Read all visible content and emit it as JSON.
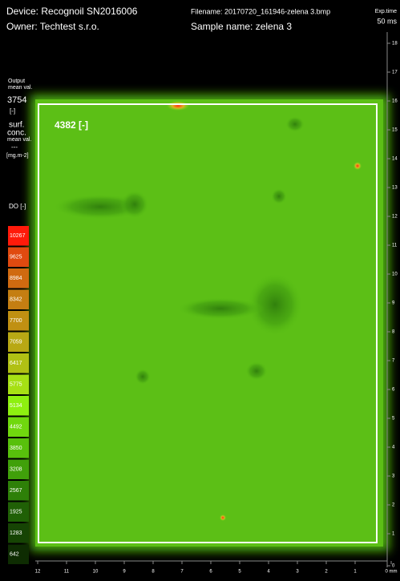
{
  "header": {
    "device": "Device: Recognoil SN2016006",
    "owner": "Owner: Techtest s.r.o.",
    "filename": "Filename: 20170720_161946-zelena 3.bmp",
    "sample_name": "Sample name: zelena 3",
    "exp_time_label": "Exp.time",
    "exp_time": "50 ms"
  },
  "left_panel": {
    "output_label": "Output",
    "output_sub": "mean val.",
    "output_value": "3754",
    "output_unit": "[-]",
    "surf_label": "surf.",
    "conc_label": "conc.",
    "conc_sub": "mean val.",
    "conc_value": "---",
    "conc_unit": "[mg.m-2]",
    "scale_title": "DO [-]"
  },
  "scale": [
    {
      "label": "10267",
      "color": "#ff1a0a"
    },
    {
      "label": "9625",
      "color": "#e04a10"
    },
    {
      "label": "8984",
      "color": "#d06a10"
    },
    {
      "label": "8342",
      "color": "#c47e12"
    },
    {
      "label": "7700",
      "color": "#c09012"
    },
    {
      "label": "7059",
      "color": "#b8a814"
    },
    {
      "label": "6417",
      "color": "#b0c014"
    },
    {
      "label": "5775",
      "color": "#a6e014"
    },
    {
      "label": "5134",
      "color": "#8ef010"
    },
    {
      "label": "4492",
      "color": "#70d80e"
    },
    {
      "label": "3850",
      "color": "#58c00c"
    },
    {
      "label": "3208",
      "color": "#40a00a"
    },
    {
      "label": "2567",
      "color": "#2e8008"
    },
    {
      "label": "1925",
      "color": "#206006"
    },
    {
      "label": "1283",
      "color": "#164404"
    },
    {
      "label": "642",
      "color": "#0e2c02"
    }
  ],
  "image_label": "4382 [-]",
  "right_axis": [
    "18",
    "17",
    "16",
    "15",
    "14",
    "13",
    "12",
    "11",
    "10",
    "9",
    "8",
    "7",
    "6",
    "5",
    "4",
    "3",
    "2",
    "1",
    "0"
  ],
  "bottom_axis": [
    "12",
    "11",
    "10",
    "9",
    "8",
    "7",
    "6",
    "5",
    "4",
    "3",
    "2",
    "1",
    "0 mm"
  ]
}
